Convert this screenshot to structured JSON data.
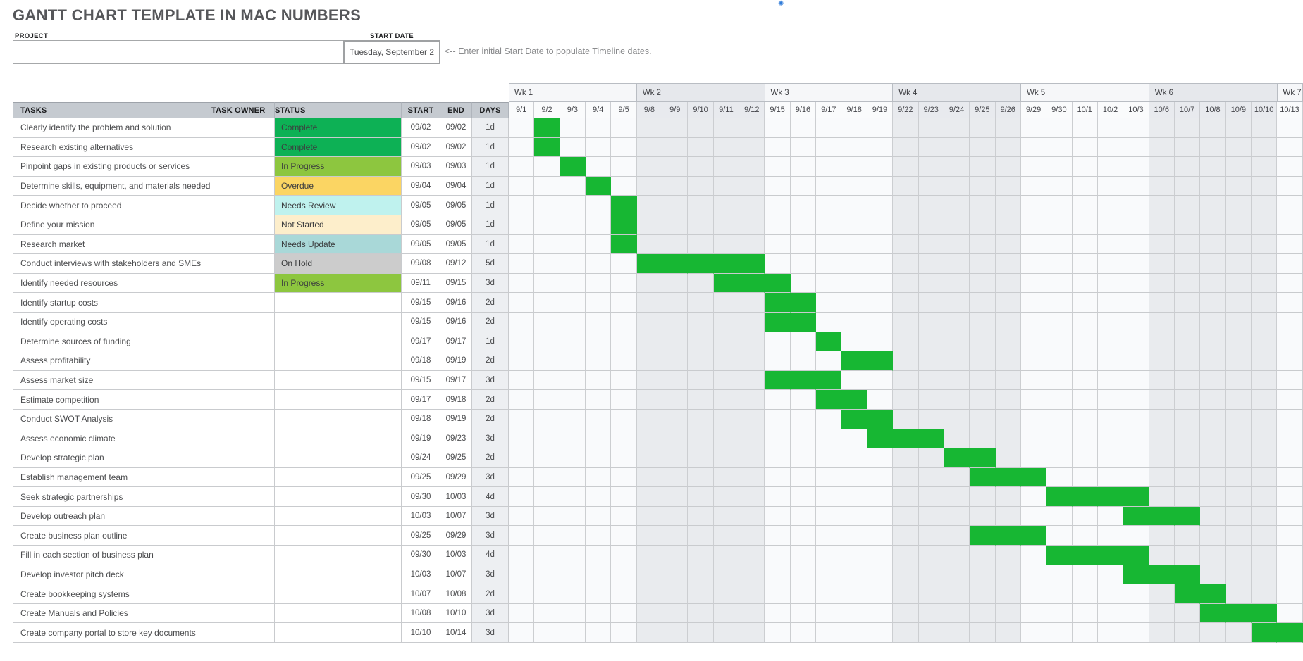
{
  "page": {
    "title": "GANTT CHART TEMPLATE IN MAC NUMBERS"
  },
  "icons": {
    "blue_marker": "blue collaboration marker"
  },
  "form": {
    "project_label": "PROJECT",
    "project_value": "",
    "start_date_label": "START DATE",
    "start_date_value": "Tuesday, September 2",
    "note": "<-- Enter initial Start Date to populate Timeline dates."
  },
  "colors": {
    "bar_green": "#17b733",
    "header_bg": "#c5cad0",
    "status": {
      "Complete": "#0db155",
      "In Progress": "#8dc63f",
      "Overdue": "#fbd563",
      "Needs Review": "#bff2ee",
      "Not Started": "#fdeecb",
      "Needs Update": "#a9d8d8",
      "On Hold": "#cccccc"
    }
  },
  "table": {
    "columns": [
      "TASKS",
      "TASK OWNER",
      "STATUS",
      "START",
      "END",
      "DAYS"
    ],
    "weeks": [
      {
        "label": "Wk 1",
        "span": 5
      },
      {
        "label": "Wk 2",
        "span": 5
      },
      {
        "label": "Wk 3",
        "span": 5
      },
      {
        "label": "Wk 4",
        "span": 5
      },
      {
        "label": "Wk 5",
        "span": 5
      },
      {
        "label": "Wk 6",
        "span": 5
      },
      {
        "label": "Wk 7",
        "span": 1
      }
    ],
    "dates": [
      "9/1",
      "9/2",
      "9/3",
      "9/4",
      "9/5",
      "9/8",
      "9/9",
      "9/10",
      "9/11",
      "9/12",
      "9/15",
      "9/16",
      "9/17",
      "9/18",
      "9/19",
      "9/22",
      "9/23",
      "9/24",
      "9/25",
      "9/26",
      "9/29",
      "9/30",
      "10/1",
      "10/2",
      "10/3",
      "10/6",
      "10/7",
      "10/8",
      "10/9",
      "10/10",
      "10/13"
    ],
    "rows": [
      {
        "task": "Clearly identify the problem and solution",
        "owner": "",
        "status": "Complete",
        "start": "09/02",
        "end": "09/02",
        "days": "1d",
        "bar": [
          1,
          1
        ]
      },
      {
        "task": "Research existing alternatives",
        "owner": "",
        "status": "Complete",
        "start": "09/02",
        "end": "09/02",
        "days": "1d",
        "bar": [
          1,
          1
        ]
      },
      {
        "task": "Pinpoint gaps in existing products or services",
        "owner": "",
        "status": "In Progress",
        "start": "09/03",
        "end": "09/03",
        "days": "1d",
        "bar": [
          2,
          2
        ]
      },
      {
        "task": "Determine skills, equipment, and materials needed",
        "owner": "",
        "status": "Overdue",
        "start": "09/04",
        "end": "09/04",
        "days": "1d",
        "bar": [
          3,
          3
        ]
      },
      {
        "task": "Decide whether to proceed",
        "owner": "",
        "status": "Needs Review",
        "start": "09/05",
        "end": "09/05",
        "days": "1d",
        "bar": [
          4,
          4
        ]
      },
      {
        "task": "Define your mission",
        "owner": "",
        "status": "Not Started",
        "start": "09/05",
        "end": "09/05",
        "days": "1d",
        "bar": [
          4,
          4
        ]
      },
      {
        "task": "Research market",
        "owner": "",
        "status": "Needs Update",
        "start": "09/05",
        "end": "09/05",
        "days": "1d",
        "bar": [
          4,
          4
        ]
      },
      {
        "task": "Conduct interviews with stakeholders and SMEs",
        "owner": "",
        "status": "On Hold",
        "start": "09/08",
        "end": "09/12",
        "days": "5d",
        "bar": [
          5,
          9
        ]
      },
      {
        "task": "Identify needed resources",
        "owner": "",
        "status": "In Progress",
        "start": "09/11",
        "end": "09/15",
        "days": "3d",
        "bar": [
          8,
          10
        ]
      },
      {
        "task": "Identify startup costs",
        "owner": "",
        "status": "",
        "start": "09/15",
        "end": "09/16",
        "days": "2d",
        "bar": [
          10,
          11
        ]
      },
      {
        "task": "Identify operating costs",
        "owner": "",
        "status": "",
        "start": "09/15",
        "end": "09/16",
        "days": "2d",
        "bar": [
          10,
          11
        ]
      },
      {
        "task": "Determine sources of funding",
        "owner": "",
        "status": "",
        "start": "09/17",
        "end": "09/17",
        "days": "1d",
        "bar": [
          12,
          12
        ]
      },
      {
        "task": "Assess profitability",
        "owner": "",
        "status": "",
        "start": "09/18",
        "end": "09/19",
        "days": "2d",
        "bar": [
          13,
          14
        ]
      },
      {
        "task": "Assess market size",
        "owner": "",
        "status": "",
        "start": "09/15",
        "end": "09/17",
        "days": "3d",
        "bar": [
          10,
          12
        ]
      },
      {
        "task": "Estimate competition",
        "owner": "",
        "status": "",
        "start": "09/17",
        "end": "09/18",
        "days": "2d",
        "bar": [
          12,
          13
        ]
      },
      {
        "task": "Conduct SWOT Analysis",
        "owner": "",
        "status": "",
        "start": "09/18",
        "end": "09/19",
        "days": "2d",
        "bar": [
          13,
          14
        ]
      },
      {
        "task": "Assess economic climate",
        "owner": "",
        "status": "",
        "start": "09/19",
        "end": "09/23",
        "days": "3d",
        "bar": [
          14,
          16
        ]
      },
      {
        "task": "Develop strategic plan",
        "owner": "",
        "status": "",
        "start": "09/24",
        "end": "09/25",
        "days": "2d",
        "bar": [
          17,
          18
        ]
      },
      {
        "task": "Establish management team",
        "owner": "",
        "status": "",
        "start": "09/25",
        "end": "09/29",
        "days": "3d",
        "bar": [
          18,
          20
        ]
      },
      {
        "task": "Seek strategic partnerships",
        "owner": "",
        "status": "",
        "start": "09/30",
        "end": "10/03",
        "days": "4d",
        "bar": [
          21,
          24
        ]
      },
      {
        "task": "Develop outreach plan",
        "owner": "",
        "status": "",
        "start": "10/03",
        "end": "10/07",
        "days": "3d",
        "bar": [
          24,
          26
        ]
      },
      {
        "task": "Create business plan outline",
        "owner": "",
        "status": "",
        "start": "09/25",
        "end": "09/29",
        "days": "3d",
        "bar": [
          18,
          20
        ]
      },
      {
        "task": "Fill in each section of business plan",
        "owner": "",
        "status": "",
        "start": "09/30",
        "end": "10/03",
        "days": "4d",
        "bar": [
          21,
          24
        ]
      },
      {
        "task": "Develop investor pitch deck",
        "owner": "",
        "status": "",
        "start": "10/03",
        "end": "10/07",
        "days": "3d",
        "bar": [
          24,
          26
        ]
      },
      {
        "task": "Create bookkeeping systems",
        "owner": "",
        "status": "",
        "start": "10/07",
        "end": "10/08",
        "days": "2d",
        "bar": [
          26,
          27
        ]
      },
      {
        "task": "Create Manuals and Policies",
        "owner": "",
        "status": "",
        "start": "10/08",
        "end": "10/10",
        "days": "3d",
        "bar": [
          27,
          29
        ]
      },
      {
        "task": "Create company portal to store key documents",
        "owner": "",
        "status": "",
        "start": "10/10",
        "end": "10/14",
        "days": "3d",
        "bar": [
          29,
          30
        ]
      }
    ]
  }
}
